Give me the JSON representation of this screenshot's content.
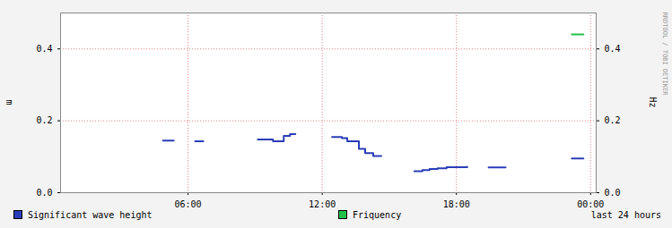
{
  "chart_data": {
    "type": "line",
    "watermark": "RRDTOOL / TOBI OETIKER",
    "y_label": "m",
    "y2_label": "Hz",
    "period": "last 24 hours",
    "x": [
      4.88,
      5.36,
      5.8,
      6.32,
      6.68,
      7.5,
      9.12,
      9.8,
      10.28,
      10.56,
      10.8,
      11.5,
      12.44,
      12.88,
      13.12,
      13.64,
      13.92,
      14.28,
      14.64,
      15.5,
      16.12,
      16.48,
      16.8,
      17.16,
      17.56,
      18.48,
      19.0,
      19.44,
      20.2,
      21.5,
      23.16,
      23.68
    ],
    "series": [
      {
        "name": "Significant wave height",
        "color": "#2a3db8",
        "line_style": "step",
        "values": [
          0.145,
          0.145,
          null,
          0.143,
          0.143,
          null,
          0.148,
          0.143,
          0.158,
          0.163,
          0.163,
          null,
          0.155,
          0.152,
          0.143,
          0.122,
          0.11,
          0.102,
          0.102,
          null,
          0.06,
          0.063,
          0.066,
          0.068,
          0.071,
          0.072,
          null,
          0.07,
          0.07,
          null,
          0.095,
          0.095
        ]
      },
      {
        "name": "Friquency",
        "color": "#22c14a",
        "line_style": "step",
        "axis": "y2",
        "values": [
          null,
          null,
          null,
          null,
          null,
          null,
          null,
          null,
          null,
          null,
          null,
          null,
          null,
          null,
          null,
          null,
          null,
          null,
          null,
          null,
          null,
          null,
          null,
          null,
          null,
          null,
          null,
          null,
          null,
          null,
          0.44,
          0.44
        ]
      }
    ],
    "xlim": [
      0.3,
      24.25
    ],
    "xticks": [
      {
        "value": 6,
        "label": "06:00"
      },
      {
        "value": 12,
        "label": "12:00"
      },
      {
        "value": 18,
        "label": "18:00"
      },
      {
        "value": 24,
        "label": "00:00"
      }
    ],
    "ylim": [
      0,
      0.5
    ],
    "yticks": [
      {
        "value": 0,
        "label": "0.0"
      },
      {
        "value": 0.2,
        "label": "0.2"
      },
      {
        "value": 0.4,
        "label": "0.4"
      }
    ],
    "y2lim": [
      0,
      0.5
    ],
    "y2ticks": [
      {
        "value": 0,
        "label": "0.0"
      },
      {
        "value": 0.2,
        "label": "0.2"
      },
      {
        "value": 0.4,
        "label": "0.4"
      }
    ],
    "grid": true,
    "legend": "bottom"
  }
}
